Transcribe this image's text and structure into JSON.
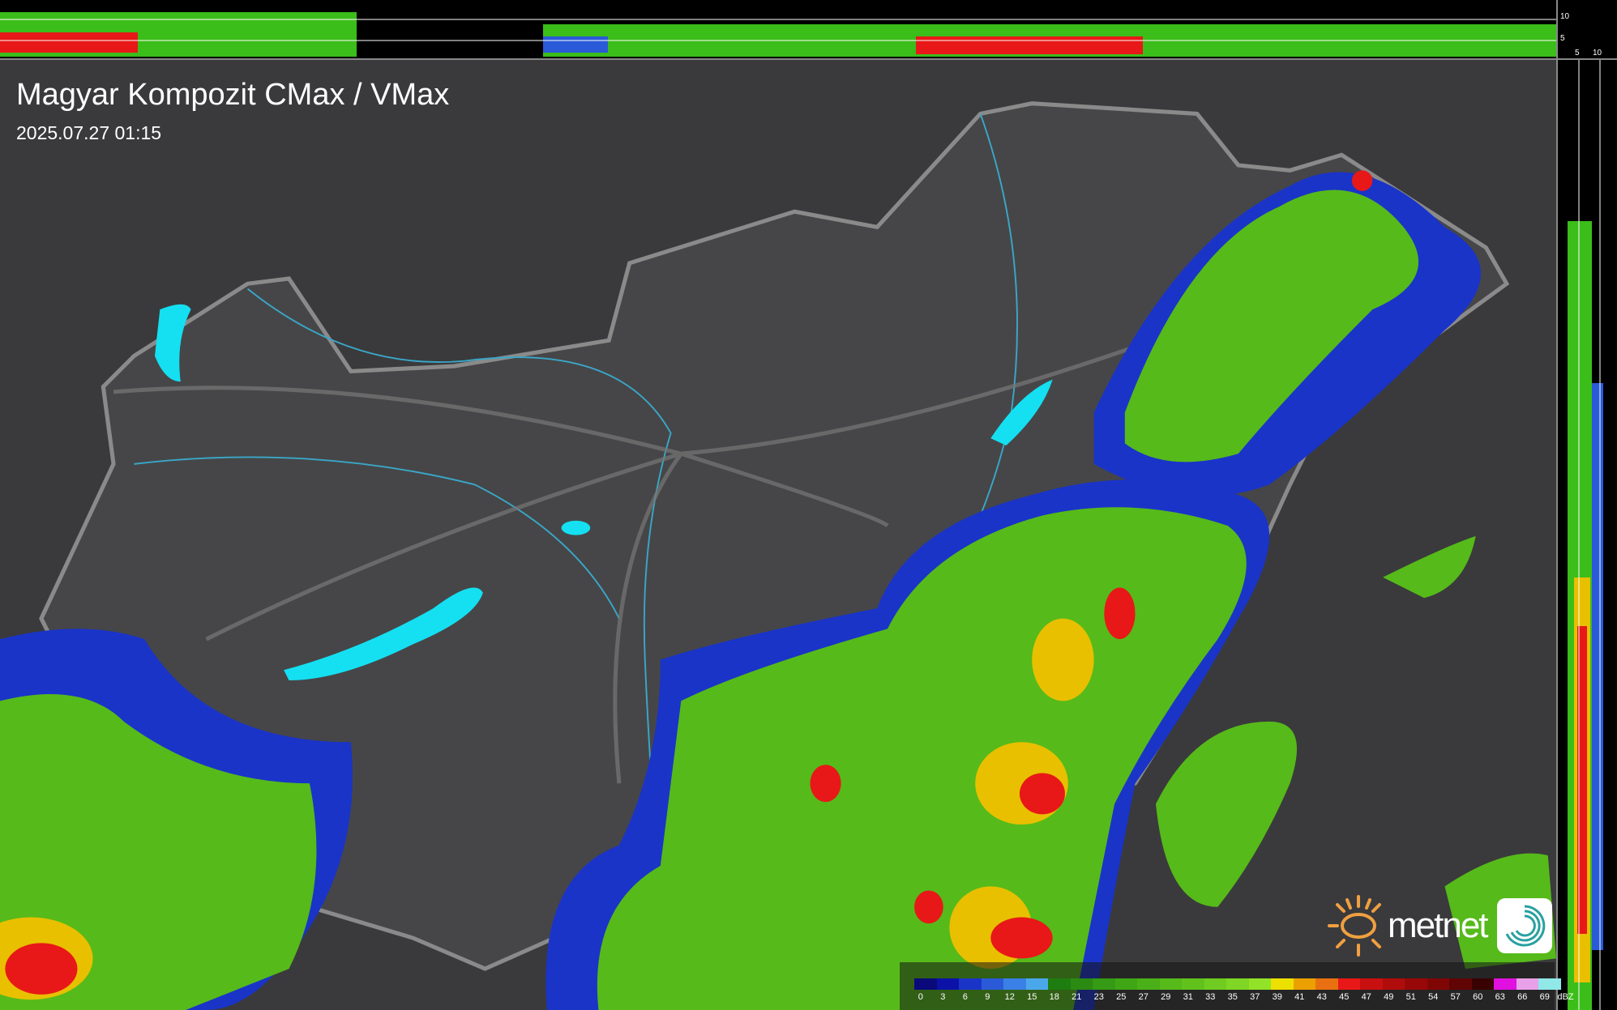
{
  "header": {
    "title": "Magyar Kompozit CMax / VMax",
    "timestamp": "2025.07.27 01:15"
  },
  "side_scales": {
    "top_ticks": [
      "10",
      "5"
    ],
    "right_ticks": [
      "5",
      "10"
    ]
  },
  "legend": {
    "unit": "dBZ",
    "labels": [
      "0",
      "3",
      "6",
      "9",
      "12",
      "15",
      "18",
      "21",
      "23",
      "25",
      "27",
      "29",
      "31",
      "33",
      "35",
      "37",
      "39",
      "41",
      "43",
      "45",
      "47",
      "49",
      "51",
      "54",
      "57",
      "60",
      "63",
      "66",
      "69"
    ],
    "colors": [
      "#0a0a7a",
      "#0c12a8",
      "#1a34c8",
      "#2a5ad8",
      "#3a80e6",
      "#4aa8ea",
      "#1e7d10",
      "#2a8a12",
      "#359a14",
      "#3fa616",
      "#4bb018",
      "#56ba1a",
      "#62c21c",
      "#70cc20",
      "#80d624",
      "#92e228",
      "#ece000",
      "#eca000",
      "#e87010",
      "#e81818",
      "#c81010",
      "#b00c0c",
      "#980808",
      "#800606",
      "#600404",
      "#380202",
      "#e010e0",
      "#e8a0e8",
      "#90e8e8"
    ]
  },
  "brand": {
    "logo": "metnet"
  },
  "colors": {
    "background": "#3a3a3c",
    "lake": "#14e0f2",
    "border": "#8a8a8a",
    "river": "#3aa7c8"
  }
}
